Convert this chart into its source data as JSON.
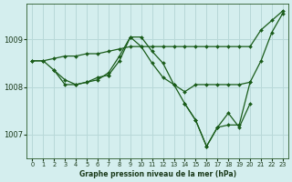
{
  "xlabel": "Graphe pression niveau de la mer (hPa)",
  "xlim": [
    -0.5,
    23.5
  ],
  "ylim": [
    1006.5,
    1009.75
  ],
  "yticks": [
    1007,
    1008,
    1009
  ],
  "xticks": [
    0,
    1,
    2,
    3,
    4,
    5,
    6,
    7,
    8,
    9,
    10,
    11,
    12,
    13,
    14,
    15,
    16,
    17,
    18,
    19,
    20,
    21,
    22,
    23
  ],
  "bg_color": "#d4eeee",
  "line_color": "#1a5c1a",
  "grid_color": "#b8d8d8",
  "series": [
    {
      "x": [
        0,
        1,
        2,
        3,
        4,
        5,
        6,
        7,
        8,
        9,
        10,
        11,
        12,
        13,
        14,
        15,
        16,
        17,
        18,
        19,
        20,
        21,
        22,
        23
      ],
      "y": [
        1008.55,
        1008.55,
        1008.6,
        1008.65,
        1008.65,
        1008.7,
        1008.7,
        1008.75,
        1008.8,
        1008.85,
        1008.85,
        1008.85,
        1008.85,
        1008.85,
        1008.85,
        1008.85,
        1008.85,
        1008.85,
        1008.85,
        1008.85,
        1008.85,
        1009.2,
        1009.4,
        1009.6
      ]
    },
    {
      "x": [
        0,
        1,
        2,
        3,
        4,
        5,
        6,
        7,
        8,
        9,
        10,
        11,
        12,
        13,
        14,
        15,
        16,
        17,
        18,
        19,
        20,
        21,
        22,
        23
      ],
      "y": [
        1008.55,
        1008.55,
        1008.35,
        1008.05,
        1008.05,
        1008.1,
        1008.15,
        1008.3,
        1008.65,
        1009.05,
        1009.05,
        1008.75,
        1008.5,
        1008.05,
        1007.65,
        1007.3,
        1006.75,
        1007.15,
        1007.2,
        1007.2,
        1008.1,
        1008.55,
        1009.15,
        1009.55
      ]
    },
    {
      "x": [
        2,
        3,
        4,
        5,
        6,
        7
      ],
      "y": [
        1008.35,
        1008.15,
        1008.05,
        1008.1,
        1008.2,
        1008.25
      ]
    },
    {
      "x": [
        7,
        8,
        9,
        10,
        11,
        12,
        13,
        14,
        15,
        16,
        17,
        18,
        19,
        20
      ],
      "y": [
        1008.25,
        1008.55,
        1009.05,
        1008.85,
        1008.5,
        1008.2,
        1008.05,
        1007.9,
        1008.05,
        1008.05,
        1008.05,
        1008.05,
        1008.05,
        1008.1
      ]
    },
    {
      "x": [
        14,
        15,
        16,
        17,
        18,
        19,
        20
      ],
      "y": [
        1007.65,
        1007.3,
        1006.75,
        1007.15,
        1007.45,
        1007.15,
        1007.65
      ]
    }
  ]
}
